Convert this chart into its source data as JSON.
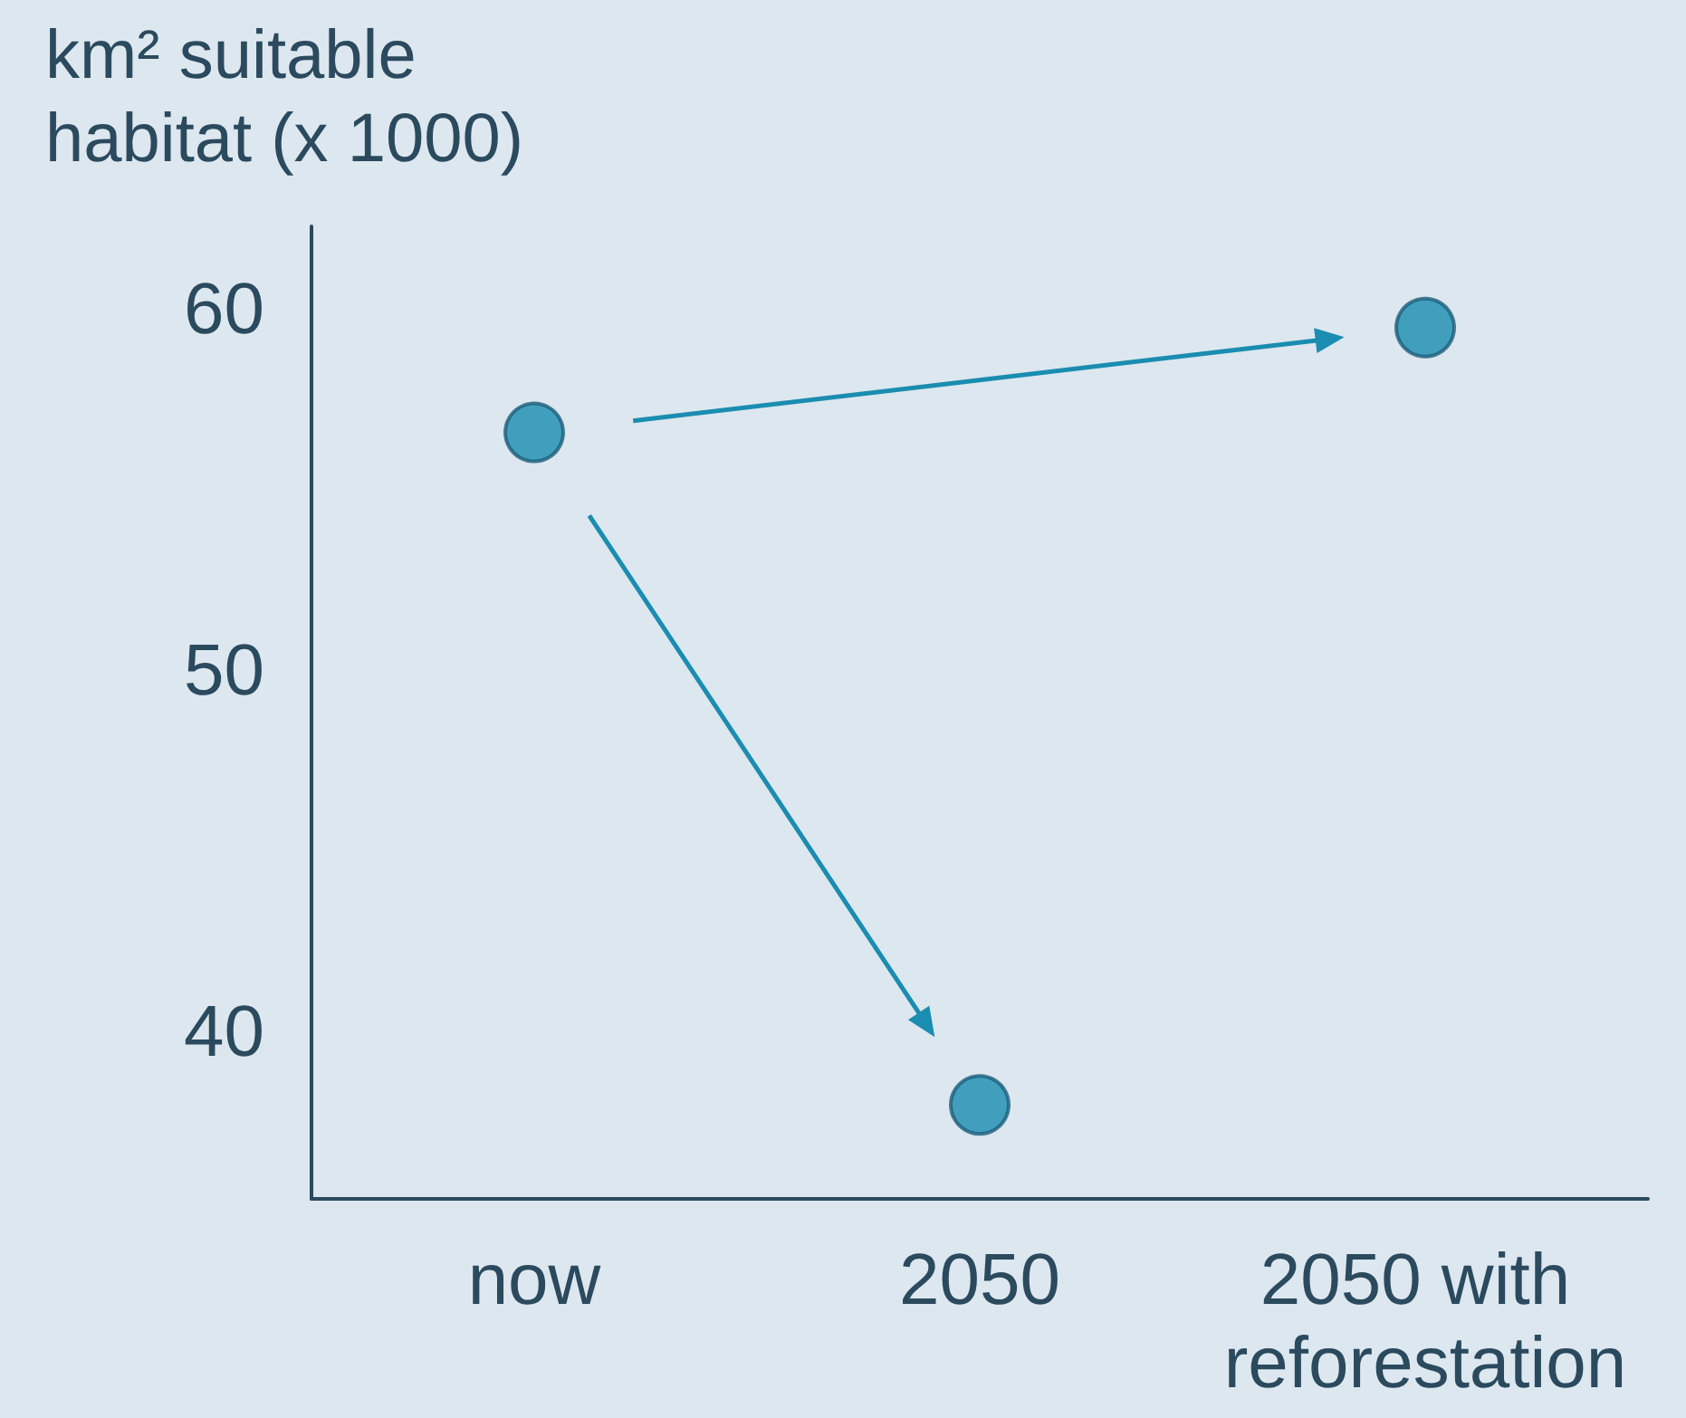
{
  "chart_data": {
    "type": "scatter",
    "ylabel": "km² suitable habitat (x 1000)",
    "categories": [
      "now",
      "2050",
      "2050 with reforestation"
    ],
    "values": [
      56.6,
      38.0,
      59.5
    ],
    "color": "#1a8db0",
    "ylim": [
      35.4,
      62.3
    ],
    "yticks": [
      40,
      50,
      60
    ],
    "grid": false,
    "marker": "circle"
  }
}
